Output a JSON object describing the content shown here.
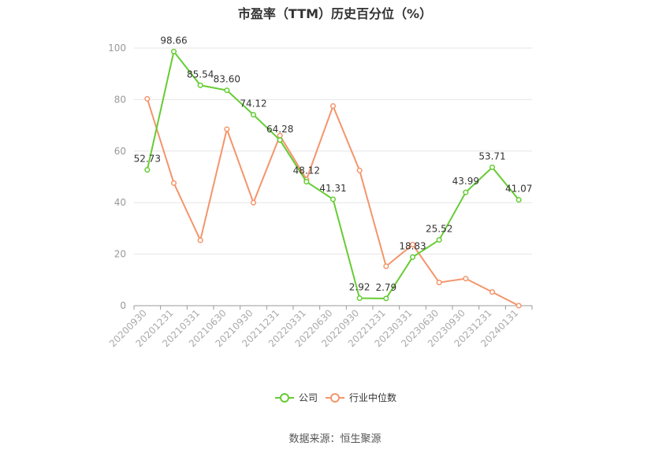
{
  "title": "市盈率（TTM）历史百分位（%）",
  "source": "数据来源：恒生聚源",
  "colors": {
    "company": "#66cc33",
    "industry": "#f4956b",
    "grid": "#e6e6e6",
    "axis": "#999999"
  },
  "chart_data": {
    "type": "line",
    "title": "市盈率（TTM）历史百分位（%）",
    "xlabel": "",
    "ylabel": "",
    "ylim": [
      0,
      100
    ],
    "yticks": [
      0,
      20,
      40,
      60,
      80,
      100
    ],
    "grid": true,
    "legend_position": "bottom",
    "categories": [
      "20200930",
      "20201231",
      "20210331",
      "20210630",
      "20210930",
      "20211231",
      "20220331",
      "20220630",
      "20220930",
      "20221231",
      "20230331",
      "20230630",
      "20230930",
      "20231231",
      "20240131"
    ],
    "series": [
      {
        "name": "公司",
        "values": [
          52.73,
          98.66,
          85.54,
          83.6,
          74.12,
          64.28,
          48.12,
          41.31,
          2.92,
          2.79,
          18.83,
          25.52,
          43.99,
          53.71,
          41.07
        ],
        "labels": [
          "52.73",
          "98.66",
          "85.54",
          "83.60",
          "74.12",
          "64.28",
          "48.12",
          "41.31",
          "2.92",
          "2.79",
          "18.83",
          "25.52",
          "43.99",
          "53.71",
          "41.07"
        ]
      },
      {
        "name": "行业中位数",
        "values": [
          80.3,
          47.6,
          25.4,
          68.5,
          40.0,
          66.0,
          49.0,
          77.5,
          52.5,
          15.3,
          23.7,
          9.0,
          10.5,
          5.3,
          0.0
        ]
      }
    ]
  }
}
